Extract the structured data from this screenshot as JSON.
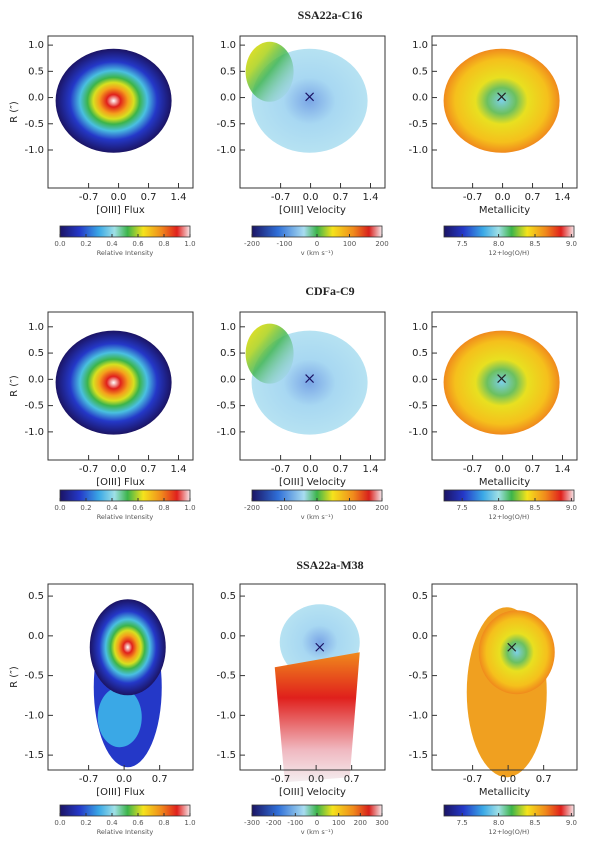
{
  "figure": {
    "rows": [
      {
        "title": "SSA22a-C16",
        "y_axis_label": "R (″)",
        "yticks": [
          "1.0",
          "0.5",
          "0.0",
          "-0.5",
          "-1.0"
        ],
        "xticks": [
          "-0.7",
          "0.0",
          "0.7",
          "1.4"
        ],
        "panels": [
          {
            "xlabel": "[OIII] Flux",
            "colorbar": {
              "ticks": [
                "0.0",
                "0.2",
                "0.4",
                "0.6",
                "0.8",
                "1.0"
              ],
              "label": "Relative Intensity"
            }
          },
          {
            "xlabel": "[OIII] Velocity",
            "colorbar": {
              "ticks": [
                "-200",
                "-100",
                "0",
                "100",
                "200"
              ],
              "label": "v (km s⁻¹)"
            }
          },
          {
            "xlabel": "Metallicity",
            "colorbar": {
              "ticks": [
                "7.5",
                "8.0",
                "8.5",
                "9.0"
              ],
              "label": "12+log(O/H)"
            }
          }
        ]
      },
      {
        "title": "CDFa-C9",
        "y_axis_label": "R (″)",
        "yticks": [
          "1.0",
          "0.5",
          "0.0",
          "-0.5",
          "-1.0"
        ],
        "xticks": [
          "-0.7",
          "0.0",
          "0.7",
          "1.4"
        ],
        "panels": [
          {
            "xlabel": "[OIII] Flux",
            "colorbar": {
              "ticks": [
                "0.0",
                "0.2",
                "0.4",
                "0.6",
                "0.8",
                "1.0"
              ],
              "label": "Relative Intensity"
            }
          },
          {
            "xlabel": "[OIII] Velocity",
            "colorbar": {
              "ticks": [
                "-200",
                "-100",
                "0",
                "100",
                "200"
              ],
              "label": "v (km s⁻¹)"
            }
          },
          {
            "xlabel": "Metallicity",
            "colorbar": {
              "ticks": [
                "7.5",
                "8.0",
                "8.5",
                "9.0"
              ],
              "label": "12+log(O/H)"
            }
          }
        ]
      },
      {
        "title": "SSA22a-M38",
        "y_axis_label": "R (″)",
        "yticks": [
          "0.5",
          "0.0",
          "-0.5",
          "-1.0",
          "-1.5"
        ],
        "xticks": [
          "-0.7",
          "0.0",
          "0.7"
        ],
        "panels": [
          {
            "xlabel": "[OIII] Flux",
            "colorbar": {
              "ticks": [
                "0.0",
                "0.2",
                "0.4",
                "0.6",
                "0.8",
                "1.0"
              ],
              "label": "Relative Intensity"
            }
          },
          {
            "xlabel": "[OIII] Velocity",
            "colorbar": {
              "ticks": [
                "-300",
                "-200",
                "-100",
                "0",
                "100",
                "200",
                "300"
              ],
              "label": "v (km s⁻¹)"
            }
          },
          {
            "xlabel": "Metallicity",
            "colorbar": {
              "ticks": [
                "7.5",
                "8.0",
                "8.5",
                "9.0"
              ],
              "label": "12+log(O/H)"
            }
          }
        ]
      }
    ]
  }
}
